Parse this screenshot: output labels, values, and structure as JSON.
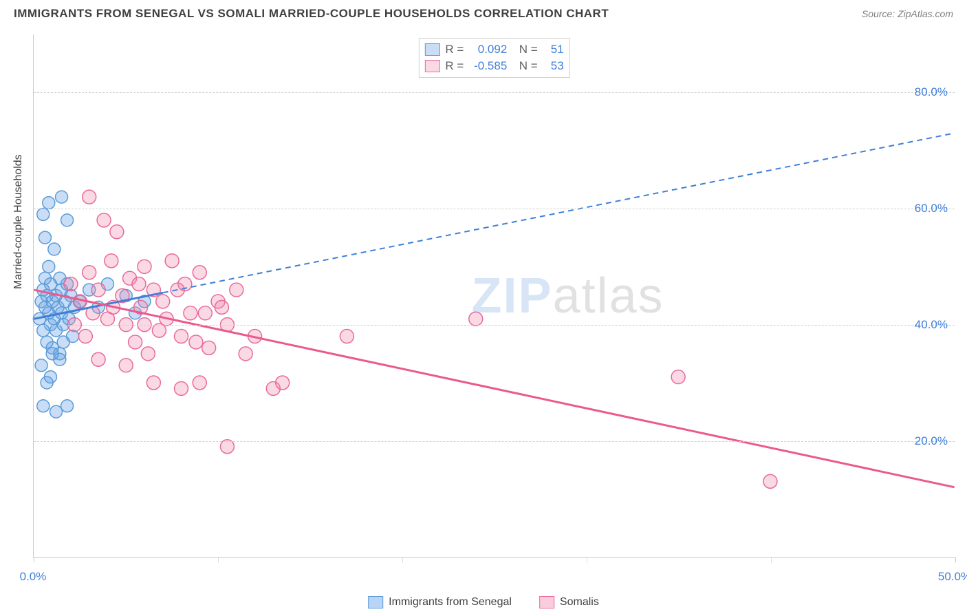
{
  "header": {
    "title": "IMMIGRANTS FROM SENEGAL VS SOMALI MARRIED-COUPLE HOUSEHOLDS CORRELATION CHART",
    "source": "Source: ZipAtlas.com"
  },
  "chart": {
    "type": "scatter",
    "ylabel": "Married-couple Households",
    "xlim": [
      0,
      50
    ],
    "ylim": [
      0,
      90
    ],
    "y_ticks": [
      20,
      40,
      60,
      80
    ],
    "y_tick_labels": [
      "20.0%",
      "40.0%",
      "60.0%",
      "80.0%"
    ],
    "x_ticks": [
      0,
      10,
      20,
      30,
      40,
      50
    ],
    "x_tick_labels_shown": {
      "0": "0.0%",
      "50": "50.0%"
    },
    "grid_color": "#d0d0d0",
    "axis_color": "#cccccc",
    "background_color": "#ffffff",
    "tick_label_color": "#3f7fd9",
    "watermark": {
      "part1": "ZIP",
      "part2": "atlas"
    },
    "series": [
      {
        "name": "Immigrants from Senegal",
        "color_fill": "rgba(100,160,230,0.35)",
        "color_stroke": "#5a9bd8",
        "marker_radius": 9,
        "R": "0.092",
        "N": "51",
        "trend": {
          "x1": 0,
          "y1": 41,
          "x2": 7,
          "y2": 45.5,
          "solid_end_x": 7,
          "dash_end_x": 50,
          "dash_end_y": 73,
          "color": "#3f7fd9",
          "width": 3
        },
        "points": [
          [
            0.3,
            41
          ],
          [
            0.4,
            44
          ],
          [
            0.5,
            39
          ],
          [
            0.5,
            46
          ],
          [
            0.6,
            43
          ],
          [
            0.6,
            48
          ],
          [
            0.7,
            37
          ],
          [
            0.7,
            45
          ],
          [
            0.8,
            42
          ],
          [
            0.8,
            50
          ],
          [
            0.9,
            40
          ],
          [
            0.9,
            47
          ],
          [
            1.0,
            44
          ],
          [
            1.0,
            36
          ],
          [
            1.1,
            41
          ],
          [
            1.1,
            53
          ],
          [
            1.2,
            39
          ],
          [
            1.2,
            45
          ],
          [
            1.3,
            43
          ],
          [
            1.4,
            48
          ],
          [
            1.4,
            35
          ],
          [
            1.5,
            42
          ],
          [
            1.5,
            46
          ],
          [
            1.6,
            40
          ],
          [
            1.7,
            44
          ],
          [
            1.8,
            47
          ],
          [
            1.9,
            41
          ],
          [
            2.0,
            45
          ],
          [
            2.1,
            38
          ],
          [
            2.2,
            43
          ],
          [
            0.5,
            59
          ],
          [
            0.8,
            61
          ],
          [
            1.5,
            62
          ],
          [
            1.8,
            58
          ],
          [
            0.6,
            55
          ],
          [
            2.5,
            44
          ],
          [
            3.0,
            46
          ],
          [
            3.5,
            43
          ],
          [
            4.0,
            47
          ],
          [
            5.0,
            45
          ],
          [
            5.5,
            42
          ],
          [
            6.0,
            44
          ],
          [
            0.4,
            33
          ],
          [
            0.9,
            31
          ],
          [
            1.4,
            34
          ],
          [
            0.5,
            26
          ],
          [
            1.2,
            25
          ],
          [
            1.8,
            26
          ],
          [
            0.7,
            30
          ],
          [
            1.0,
            35
          ],
          [
            1.6,
            37
          ]
        ]
      },
      {
        "name": "Somalis",
        "color_fill": "rgba(240,130,170,0.30)",
        "color_stroke": "#e86a9a",
        "marker_radius": 10,
        "R": "-0.585",
        "N": "53",
        "trend": {
          "x1": 0,
          "y1": 46,
          "x2": 50,
          "y2": 12,
          "color": "#ea5a8c",
          "width": 3
        },
        "points": [
          [
            2.0,
            47
          ],
          [
            2.5,
            44
          ],
          [
            3.0,
            49
          ],
          [
            3.2,
            42
          ],
          [
            3.5,
            46
          ],
          [
            3.8,
            58
          ],
          [
            4.0,
            41
          ],
          [
            4.2,
            51
          ],
          [
            4.5,
            56
          ],
          [
            4.8,
            45
          ],
          [
            5.0,
            40
          ],
          [
            5.2,
            48
          ],
          [
            5.5,
            37
          ],
          [
            5.8,
            43
          ],
          [
            6.0,
            50
          ],
          [
            6.2,
            35
          ],
          [
            6.5,
            46
          ],
          [
            6.8,
            39
          ],
          [
            7.0,
            44
          ],
          [
            7.5,
            51
          ],
          [
            8.0,
            38
          ],
          [
            8.2,
            47
          ],
          [
            8.5,
            42
          ],
          [
            9.0,
            49
          ],
          [
            9.5,
            36
          ],
          [
            10.0,
            44
          ],
          [
            10.5,
            40
          ],
          [
            11.0,
            46
          ],
          [
            3.0,
            62
          ],
          [
            3.5,
            34
          ],
          [
            5.0,
            33
          ],
          [
            6.5,
            30
          ],
          [
            8.0,
            29
          ],
          [
            9.0,
            30
          ],
          [
            12.0,
            38
          ],
          [
            13.0,
            29
          ],
          [
            13.5,
            30
          ],
          [
            17.0,
            38
          ],
          [
            24.0,
            41
          ],
          [
            10.5,
            19
          ],
          [
            35.0,
            31
          ],
          [
            40.0,
            13
          ],
          [
            2.2,
            40
          ],
          [
            2.8,
            38
          ],
          [
            4.3,
            43
          ],
          [
            5.7,
            47
          ],
          [
            7.2,
            41
          ],
          [
            8.8,
            37
          ],
          [
            10.2,
            43
          ],
          [
            11.5,
            35
          ],
          [
            6.0,
            40
          ],
          [
            7.8,
            46
          ],
          [
            9.3,
            42
          ]
        ]
      }
    ],
    "bottom_legend": [
      {
        "label": "Immigrants from Senegal",
        "fill": "rgba(100,160,230,0.45)",
        "stroke": "#5a9bd8"
      },
      {
        "label": "Somalis",
        "fill": "rgba(240,130,170,0.40)",
        "stroke": "#e86a9a"
      }
    ]
  }
}
